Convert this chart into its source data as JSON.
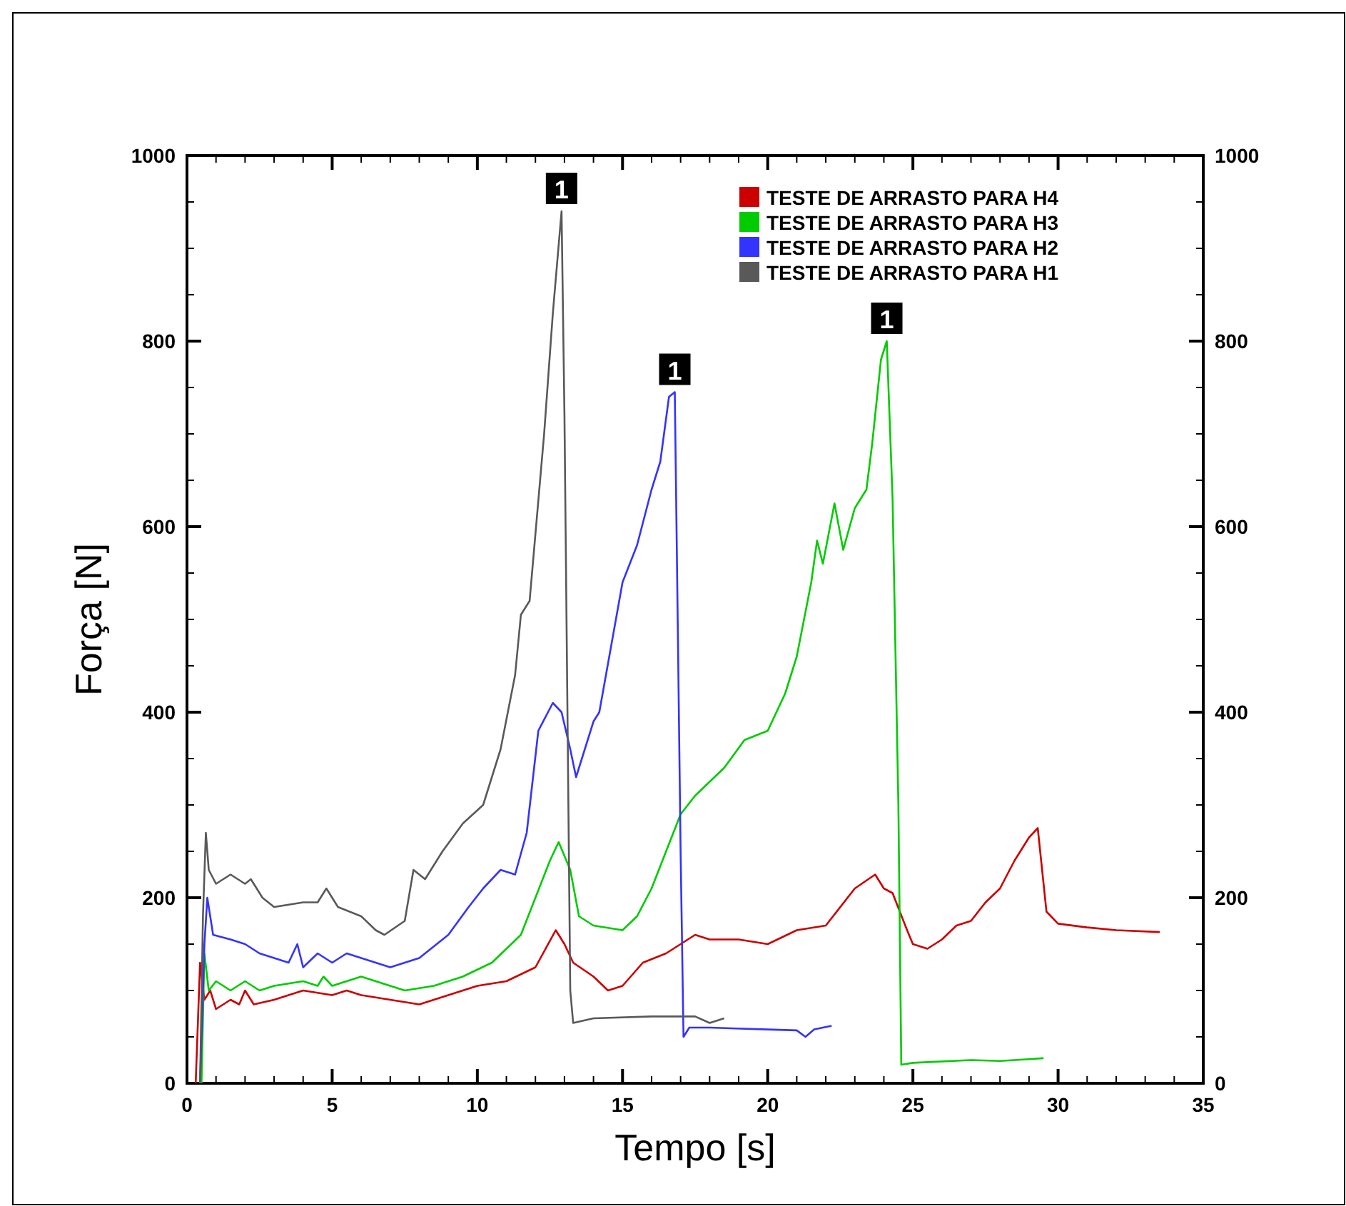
{
  "chart_data": {
    "type": "line",
    "xlabel": "Tempo [s]",
    "ylabel": "Força [N]",
    "xlim": [
      0,
      35
    ],
    "ylim": [
      0,
      1000
    ],
    "y2lim": [
      0,
      1000
    ],
    "xticks": [
      0,
      {
        "value": 1,
        "label": null
      },
      {
        "value": 2,
        "label": null
      },
      {
        "value": 3,
        "label": null
      },
      {
        "value": 4,
        "label": null
      },
      5,
      {
        "value": 6,
        "label": null
      },
      {
        "value": 7,
        "label": null
      },
      {
        "value": 8,
        "label": null
      },
      {
        "value": 9,
        "label": null
      },
      10,
      {
        "value": 11,
        "label": null
      },
      {
        "value": 12,
        "label": null
      },
      {
        "value": 13,
        "label": null
      },
      {
        "value": 14,
        "label": null
      },
      15,
      {
        "value": 16,
        "label": null
      },
      {
        "value": 17,
        "label": null
      },
      {
        "value": 18,
        "label": null
      },
      {
        "value": 19,
        "label": null
      },
      20,
      {
        "value": 21,
        "label": null
      },
      {
        "value": 22,
        "label": null
      },
      {
        "value": 23,
        "label": null
      },
      {
        "value": 24,
        "label": null
      },
      25,
      {
        "value": 26,
        "label": null
      },
      {
        "value": 27,
        "label": null
      },
      {
        "value": 28,
        "label": null
      },
      {
        "value": 29,
        "label": null
      },
      30,
      {
        "value": 31,
        "label": null
      },
      {
        "value": 32,
        "label": null
      },
      {
        "value": 33,
        "label": null
      },
      {
        "value": 34,
        "label": null
      },
      35
    ],
    "yticks": [
      0,
      {
        "value": 50,
        "label": null
      },
      {
        "value": 100,
        "label": null
      },
      {
        "value": 150,
        "label": null
      },
      200,
      {
        "value": 250,
        "label": null
      },
      {
        "value": 300,
        "label": null
      },
      {
        "value": 350,
        "label": null
      },
      400,
      {
        "value": 450,
        "label": null
      },
      {
        "value": 500,
        "label": null
      },
      {
        "value": 550,
        "label": null
      },
      600,
      {
        "value": 650,
        "label": null
      },
      {
        "value": 700,
        "label": null
      },
      {
        "value": 750,
        "label": null
      },
      800,
      {
        "value": 850,
        "label": null
      },
      {
        "value": 900,
        "label": null
      },
      {
        "value": 950,
        "label": null
      },
      1000
    ],
    "y2ticks": [
      0,
      {
        "value": 50,
        "label": null
      },
      {
        "value": 100,
        "label": null
      },
      {
        "value": 150,
        "label": null
      },
      200,
      {
        "value": 250,
        "label": null
      },
      {
        "value": 300,
        "label": null
      },
      {
        "value": 350,
        "label": null
      },
      400,
      {
        "value": 450,
        "label": null
      },
      {
        "value": 500,
        "label": null
      },
      {
        "value": 550,
        "label": null
      },
      600,
      {
        "value": 650,
        "label": null
      },
      {
        "value": 700,
        "label": null
      },
      {
        "value": 750,
        "label": null
      },
      800,
      {
        "value": 850,
        "label": null
      },
      {
        "value": 900,
        "label": null
      },
      {
        "value": 950,
        "label": null
      },
      1000
    ],
    "legend": "top right",
    "grid": false,
    "marker": "none",
    "line_style": "solid",
    "annotations": [
      {
        "text": "1",
        "x": 12.9,
        "y": 940
      },
      {
        "text": "1",
        "x": 16.8,
        "y": 745
      },
      {
        "text": "1",
        "x": 24.1,
        "y": 800
      }
    ],
    "series": [
      {
        "name": "TESTE DE ARRASTO PARA H4",
        "color": "#cc0000",
        "x": [
          0.3,
          0.45,
          0.6,
          0.8,
          1,
          1.5,
          1.8,
          2,
          2.3,
          3,
          4,
          5,
          5.5,
          6,
          7,
          8,
          9,
          10,
          11,
          12,
          12.7,
          13,
          13.3,
          14,
          14.5,
          15,
          15.7,
          16.5,
          17,
          17.5,
          18,
          19,
          20,
          21,
          22,
          23,
          23.7,
          24,
          24.3,
          24.8,
          25,
          25.5,
          26,
          26.5,
          27,
          27.5,
          28,
          28.5,
          29,
          29.3,
          29.6,
          30,
          31,
          32,
          33.5
        ],
        "values": [
          0,
          130,
          90,
          100,
          80,
          90,
          85,
          100,
          85,
          90,
          100,
          95,
          100,
          95,
          90,
          85,
          95,
          105,
          110,
          125,
          165,
          150,
          130,
          115,
          100,
          105,
          130,
          140,
          150,
          160,
          155,
          155,
          150,
          165,
          170,
          210,
          225,
          210,
          205,
          165,
          150,
          145,
          155,
          170,
          175,
          195,
          210,
          240,
          265,
          275,
          185,
          172,
          168,
          165,
          163
        ]
      },
      {
        "name": "TESTE DE ARRASTO PARA H3",
        "color": "#00cc00",
        "x": [
          0.5,
          0.6,
          0.75,
          1,
          1.5,
          2,
          2.5,
          3,
          4,
          4.5,
          4.7,
          5,
          5.5,
          6,
          7,
          7.5,
          8.5,
          9.5,
          10.5,
          11.5,
          12,
          12.5,
          12.8,
          13.2,
          13.5,
          14,
          15,
          15.5,
          16,
          16.5,
          17,
          17.5,
          18.5,
          19.2,
          20,
          20.6,
          21,
          21.5,
          21.7,
          21.9,
          22.3,
          22.6,
          23,
          23.4,
          23.6,
          23.9,
          24.1,
          24.3,
          24.5,
          24.6,
          25,
          27,
          28,
          29,
          29.5
        ],
        "values": [
          0,
          140,
          100,
          110,
          100,
          110,
          100,
          105,
          110,
          105,
          115,
          105,
          110,
          115,
          105,
          100,
          105,
          115,
          130,
          160,
          200,
          240,
          260,
          230,
          180,
          170,
          165,
          180,
          210,
          250,
          290,
          310,
          340,
          370,
          380,
          420,
          460,
          540,
          585,
          560,
          625,
          575,
          620,
          640,
          690,
          780,
          800,
          630,
          300,
          20,
          22,
          25,
          24,
          26,
          27
        ]
      },
      {
        "name": "TESTE DE ARRASTO PARA H2",
        "color": "#3333ff",
        "x": [
          0.45,
          0.6,
          0.7,
          0.9,
          1.5,
          2,
          2.5,
          3,
          3.5,
          3.8,
          4,
          4.5,
          5,
          5.5,
          6,
          6.5,
          7,
          7.5,
          8,
          9,
          9.7,
          10.2,
          10.8,
          11.3,
          11.7,
          12.1,
          12.6,
          12.9,
          13.2,
          13.4,
          14,
          14.2,
          15,
          15.5,
          16,
          16.3,
          16.6,
          16.8,
          16.9,
          17,
          17.1,
          17.3,
          18,
          20,
          21,
          21.3,
          21.6,
          22.2
        ],
        "values": [
          0,
          150,
          200,
          160,
          155,
          150,
          140,
          135,
          130,
          150,
          125,
          140,
          130,
          140,
          135,
          130,
          125,
          130,
          135,
          160,
          190,
          210,
          230,
          225,
          270,
          380,
          410,
          400,
          360,
          330,
          390,
          400,
          540,
          580,
          640,
          670,
          740,
          745,
          500,
          250,
          50,
          60,
          60,
          58,
          57,
          50,
          58,
          62
        ]
      },
      {
        "name": "TESTE DE ARRASTO PARA H1",
        "color": "#595959",
        "x": [
          0.45,
          0.55,
          0.65,
          0.75,
          1,
          1.5,
          2,
          2.2,
          2.6,
          3,
          4,
          4.5,
          4.8,
          5.2,
          6,
          6.5,
          6.8,
          7.5,
          7.8,
          8.2,
          8.8,
          9.5,
          10.2,
          10.8,
          11.3,
          11.5,
          11.8,
          12.3,
          12.6,
          12.9,
          13,
          13.2,
          13.3,
          14,
          16,
          17.5,
          18,
          18.5
        ],
        "values": [
          0,
          180,
          270,
          230,
          215,
          225,
          215,
          220,
          200,
          190,
          195,
          195,
          210,
          190,
          180,
          165,
          160,
          175,
          230,
          220,
          250,
          280,
          300,
          360,
          440,
          505,
          520,
          700,
          830,
          940,
          720,
          100,
          65,
          70,
          72,
          72,
          65,
          70
        ]
      }
    ]
  }
}
